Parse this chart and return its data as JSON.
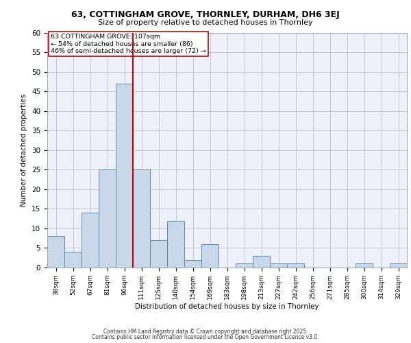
{
  "title1": "63, COTTINGHAM GROVE, THORNLEY, DURHAM, DH6 3EJ",
  "title2": "Size of property relative to detached houses in Thornley",
  "xlabel": "Distribution of detached houses by size in Thornley",
  "ylabel": "Number of detached properties",
  "bar_labels": [
    "38sqm",
    "52sqm",
    "67sqm",
    "81sqm",
    "96sqm",
    "111sqm",
    "125sqm",
    "140sqm",
    "154sqm",
    "169sqm",
    "183sqm",
    "198sqm",
    "213sqm",
    "227sqm",
    "242sqm",
    "256sqm",
    "271sqm",
    "285sqm",
    "300sqm",
    "314sqm",
    "329sqm"
  ],
  "bar_values": [
    8,
    4,
    14,
    25,
    47,
    25,
    7,
    12,
    2,
    6,
    0,
    1,
    3,
    1,
    1,
    0,
    0,
    0,
    1,
    0,
    1
  ],
  "bar_color": "#c8d8e8",
  "bar_edge_color": "#5a8ab0",
  "vline_x": 4.5,
  "vline_color": "#cc0000",
  "annotation_text": "63 COTTINGHAM GROVE: 107sqm\n← 54% of detached houses are smaller (86)\n46% of semi-detached houses are larger (72) →",
  "annotation_box_color": "white",
  "annotation_edge_color": "#cc0000",
  "ylim": [
    0,
    60
  ],
  "yticks": [
    0,
    5,
    10,
    15,
    20,
    25,
    30,
    35,
    40,
    45,
    50,
    55,
    60
  ],
  "grid_color": "#c0c8d8",
  "bg_color": "#eef2f8",
  "footer1": "Contains HM Land Registry data © Crown copyright and database right 2025.",
  "footer2": "Contains public sector information licensed under the Open Government Licence v3.0."
}
